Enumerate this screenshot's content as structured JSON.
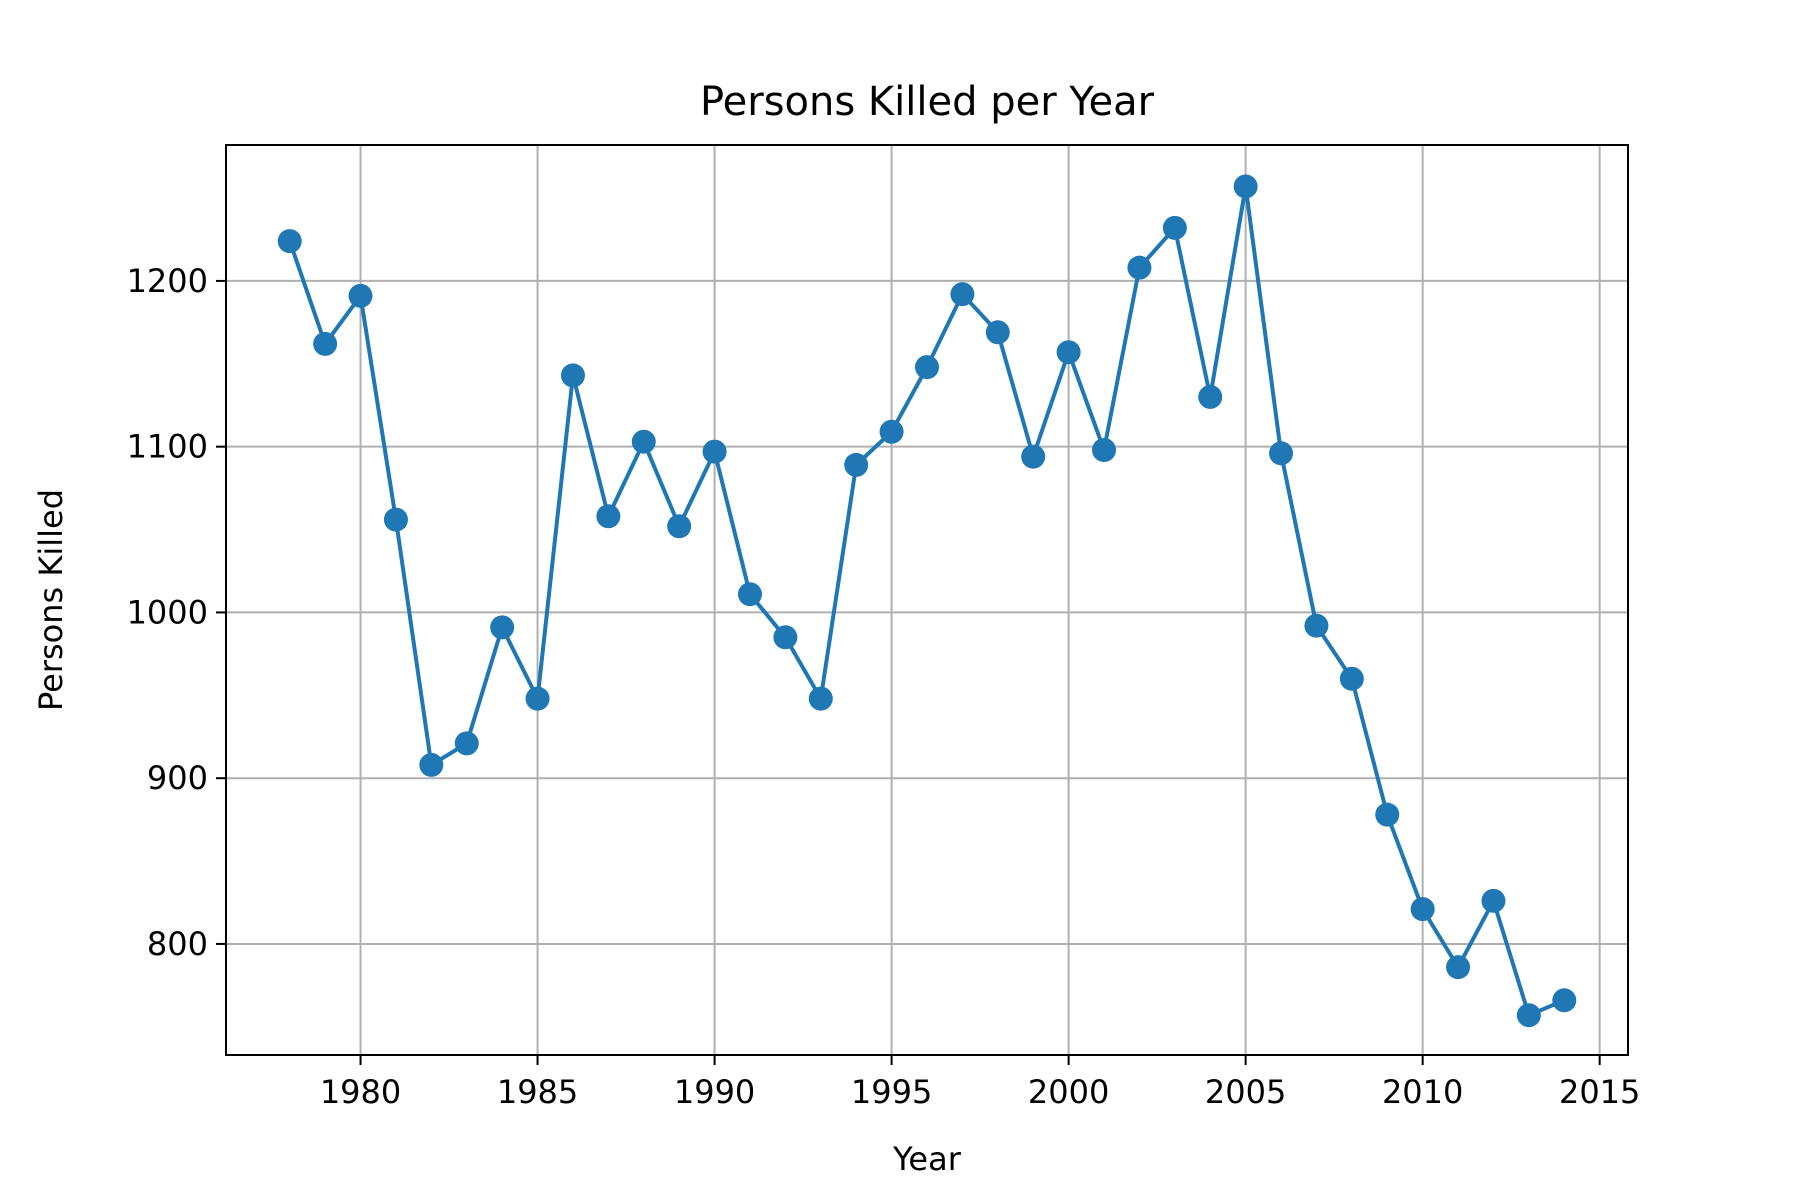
{
  "chart_data": {
    "type": "line",
    "title": "Persons Killed per Year",
    "xlabel": "Year",
    "ylabel": "Persons Killed",
    "xlim": [
      1976.2,
      2015.8
    ],
    "ylim": [
      733,
      1282
    ],
    "xticks": [
      1980,
      1985,
      1990,
      1995,
      2000,
      2005,
      2010,
      2015
    ],
    "yticks": [
      800,
      900,
      1000,
      1100,
      1200
    ],
    "grid": true,
    "series": [
      {
        "color": "#1f77b4",
        "marker": "circle",
        "x": [
          1978,
          1979,
          1980,
          1981,
          1982,
          1983,
          1984,
          1985,
          1986,
          1987,
          1988,
          1989,
          1990,
          1991,
          1992,
          1993,
          1994,
          1995,
          1996,
          1997,
          1998,
          1999,
          2000,
          2001,
          2002,
          2003,
          2004,
          2005,
          2006,
          2007,
          2008,
          2009,
          2010,
          2011,
          2012,
          2013,
          2014
        ],
        "y": [
          1224,
          1162,
          1191,
          1056,
          908,
          921,
          991,
          948,
          1143,
          1058,
          1103,
          1052,
          1097,
          1011,
          985,
          948,
          1089,
          1109,
          1148,
          1192,
          1169,
          1094,
          1157,
          1098,
          1208,
          1232,
          1130,
          1257,
          1096,
          992,
          960,
          878,
          821,
          786,
          826,
          757,
          766
        ]
      }
    ]
  }
}
